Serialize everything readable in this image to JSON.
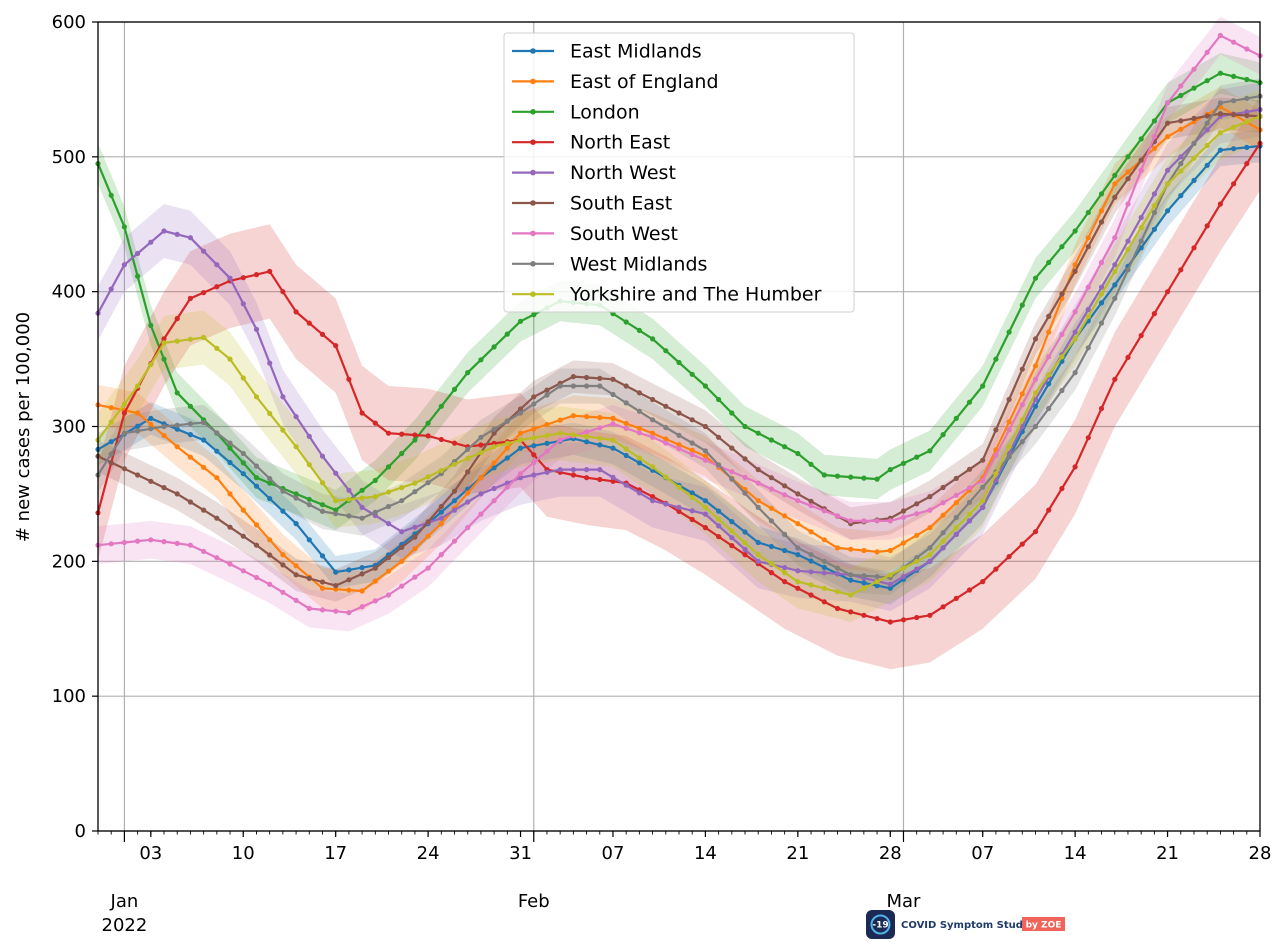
{
  "chart_data": {
    "type": "line",
    "title": "",
    "xlabel": "",
    "ylabel": "# new cases per 100,000",
    "ylim": [
      0,
      600
    ],
    "xlim": [
      "2021-12-30",
      "2022-03-28"
    ],
    "grid": true,
    "legend_position": "top-center",
    "y_ticks": [
      0,
      100,
      200,
      300,
      400,
      500,
      600
    ],
    "x_major_ticks": [
      {
        "date": "2022-01-01",
        "label": "Jan",
        "sublabel": "2022"
      },
      {
        "date": "2022-02-01",
        "label": "Feb",
        "sublabel": ""
      },
      {
        "date": "2022-03-01",
        "label": "Mar",
        "sublabel": ""
      }
    ],
    "x_minor_ticks": [
      {
        "date": "2022-01-03",
        "label": "03"
      },
      {
        "date": "2022-01-10",
        "label": "10"
      },
      {
        "date": "2022-01-17",
        "label": "17"
      },
      {
        "date": "2022-01-24",
        "label": "24"
      },
      {
        "date": "2022-01-31",
        "label": "31"
      },
      {
        "date": "2022-02-07",
        "label": "07"
      },
      {
        "date": "2022-02-14",
        "label": "14"
      },
      {
        "date": "2022-02-21",
        "label": "21"
      },
      {
        "date": "2022-02-28",
        "label": "28"
      },
      {
        "date": "2022-03-07",
        "label": "07"
      },
      {
        "date": "2022-03-14",
        "label": "14"
      },
      {
        "date": "2022-03-21",
        "label": "21"
      },
      {
        "date": "2022-03-28",
        "label": "28"
      }
    ],
    "series": [
      {
        "name": "East Midlands",
        "color": "#1f77b4",
        "band": 12,
        "points": [
          [
            "2021-12-30",
            283
          ],
          [
            "2022-01-03",
            306
          ],
          [
            "2022-01-07",
            290
          ],
          [
            "2022-01-10",
            265
          ],
          [
            "2022-01-14",
            228
          ],
          [
            "2022-01-17",
            192
          ],
          [
            "2022-01-20",
            197
          ],
          [
            "2022-01-24",
            228
          ],
          [
            "2022-01-28",
            262
          ],
          [
            "2022-01-31",
            284
          ],
          [
            "2022-02-04",
            291
          ],
          [
            "2022-02-07",
            284
          ],
          [
            "2022-02-11",
            262
          ],
          [
            "2022-02-14",
            245
          ],
          [
            "2022-02-18",
            214
          ],
          [
            "2022-02-21",
            205
          ],
          [
            "2022-02-25",
            186
          ],
          [
            "2022-02-28",
            180
          ],
          [
            "2022-03-03",
            200
          ],
          [
            "2022-03-07",
            240
          ],
          [
            "2022-03-11",
            315
          ],
          [
            "2022-03-14",
            365
          ],
          [
            "2022-03-17",
            405
          ],
          [
            "2022-03-21",
            460
          ],
          [
            "2022-03-25",
            505
          ],
          [
            "2022-03-28",
            508
          ]
        ]
      },
      {
        "name": "East of England",
        "color": "#ff7f0e",
        "band": 15,
        "points": [
          [
            "2021-12-30",
            316
          ],
          [
            "2022-01-02",
            310
          ],
          [
            "2022-01-05",
            285
          ],
          [
            "2022-01-08",
            262
          ],
          [
            "2022-01-10",
            238
          ],
          [
            "2022-01-13",
            205
          ],
          [
            "2022-01-16",
            180
          ],
          [
            "2022-01-19",
            178
          ],
          [
            "2022-01-22",
            200
          ],
          [
            "2022-01-25",
            228
          ],
          [
            "2022-01-28",
            262
          ],
          [
            "2022-01-31",
            295
          ],
          [
            "2022-02-04",
            308
          ],
          [
            "2022-02-07",
            306
          ],
          [
            "2022-02-10",
            295
          ],
          [
            "2022-02-14",
            278
          ],
          [
            "2022-02-18",
            245
          ],
          [
            "2022-02-21",
            228
          ],
          [
            "2022-02-24",
            210
          ],
          [
            "2022-02-27",
            207
          ],
          [
            "2022-02-28",
            208
          ],
          [
            "2022-03-03",
            225
          ],
          [
            "2022-03-07",
            262
          ],
          [
            "2022-03-11",
            345
          ],
          [
            "2022-03-14",
            420
          ],
          [
            "2022-03-17",
            480
          ],
          [
            "2022-03-21",
            515
          ],
          [
            "2022-03-25",
            537
          ],
          [
            "2022-03-28",
            520
          ]
        ]
      },
      {
        "name": "London",
        "color": "#2ca02c",
        "band": 15,
        "points": [
          [
            "2021-12-30",
            495
          ],
          [
            "2022-01-01",
            448
          ],
          [
            "2022-01-03",
            375
          ],
          [
            "2022-01-05",
            325
          ],
          [
            "2022-01-08",
            295
          ],
          [
            "2022-01-11",
            262
          ],
          [
            "2022-01-14",
            250
          ],
          [
            "2022-01-17",
            238
          ],
          [
            "2022-01-20",
            260
          ],
          [
            "2022-01-23",
            290
          ],
          [
            "2022-01-27",
            340
          ],
          [
            "2022-01-31",
            378
          ],
          [
            "2022-02-03",
            393
          ],
          [
            "2022-02-06",
            390
          ],
          [
            "2022-02-10",
            365
          ],
          [
            "2022-02-14",
            330
          ],
          [
            "2022-02-17",
            300
          ],
          [
            "2022-02-21",
            280
          ],
          [
            "2022-02-23",
            264
          ],
          [
            "2022-02-27",
            261
          ],
          [
            "2022-02-28",
            268
          ],
          [
            "2022-03-03",
            282
          ],
          [
            "2022-03-07",
            330
          ],
          [
            "2022-03-11",
            410
          ],
          [
            "2022-03-14",
            445
          ],
          [
            "2022-03-18",
            500
          ],
          [
            "2022-03-21",
            540
          ],
          [
            "2022-03-25",
            562
          ],
          [
            "2022-03-28",
            555
          ]
        ]
      },
      {
        "name": "North East",
        "color": "#d62728",
        "band": 35,
        "points": [
          [
            "2021-12-30",
            236
          ],
          [
            "2022-01-01",
            310
          ],
          [
            "2022-01-04",
            365
          ],
          [
            "2022-01-06",
            395
          ],
          [
            "2022-01-09",
            408
          ],
          [
            "2022-01-12",
            415
          ],
          [
            "2022-01-14",
            385
          ],
          [
            "2022-01-17",
            360
          ],
          [
            "2022-01-19",
            310
          ],
          [
            "2022-01-21",
            295
          ],
          [
            "2022-01-24",
            293
          ],
          [
            "2022-01-27",
            285
          ],
          [
            "2022-01-31",
            290
          ],
          [
            "2022-02-02",
            268
          ],
          [
            "2022-02-05",
            262
          ],
          [
            "2022-02-08",
            258
          ],
          [
            "2022-02-11",
            243
          ],
          [
            "2022-02-14",
            225
          ],
          [
            "2022-02-17",
            205
          ],
          [
            "2022-02-20",
            185
          ],
          [
            "2022-02-24",
            165
          ],
          [
            "2022-02-28",
            155
          ],
          [
            "2022-03-03",
            160
          ],
          [
            "2022-03-07",
            185
          ],
          [
            "2022-03-11",
            222
          ],
          [
            "2022-03-14",
            270
          ],
          [
            "2022-03-17",
            335
          ],
          [
            "2022-03-21",
            400
          ],
          [
            "2022-03-25",
            465
          ],
          [
            "2022-03-28",
            510
          ]
        ]
      },
      {
        "name": "North West",
        "color": "#9467bd",
        "band": 20,
        "points": [
          [
            "2021-12-30",
            384
          ],
          [
            "2022-01-01",
            420
          ],
          [
            "2022-01-04",
            445
          ],
          [
            "2022-01-06",
            440
          ],
          [
            "2022-01-09",
            410
          ],
          [
            "2022-01-11",
            372
          ],
          [
            "2022-01-13",
            322
          ],
          [
            "2022-01-16",
            278
          ],
          [
            "2022-01-19",
            240
          ],
          [
            "2022-01-22",
            222
          ],
          [
            "2022-01-25",
            232
          ],
          [
            "2022-01-28",
            250
          ],
          [
            "2022-01-31",
            262
          ],
          [
            "2022-02-03",
            268
          ],
          [
            "2022-02-06",
            268
          ],
          [
            "2022-02-10",
            245
          ],
          [
            "2022-02-14",
            235
          ],
          [
            "2022-02-18",
            200
          ],
          [
            "2022-02-21",
            193
          ],
          [
            "2022-02-25",
            190
          ],
          [
            "2022-02-28",
            183
          ],
          [
            "2022-03-03",
            200
          ],
          [
            "2022-03-07",
            240
          ],
          [
            "2022-03-11",
            320
          ],
          [
            "2022-03-14",
            370
          ],
          [
            "2022-03-17",
            420
          ],
          [
            "2022-03-21",
            490
          ],
          [
            "2022-03-25",
            530
          ],
          [
            "2022-03-28",
            535
          ]
        ]
      },
      {
        "name": "South East",
        "color": "#8c564b",
        "band": 12,
        "points": [
          [
            "2021-12-30",
            278
          ],
          [
            "2022-01-02",
            264
          ],
          [
            "2022-01-05",
            250
          ],
          [
            "2022-01-08",
            232
          ],
          [
            "2022-01-11",
            212
          ],
          [
            "2022-01-14",
            190
          ],
          [
            "2022-01-17",
            182
          ],
          [
            "2022-01-20",
            195
          ],
          [
            "2022-01-23",
            218
          ],
          [
            "2022-01-26",
            252
          ],
          [
            "2022-01-29",
            295
          ],
          [
            "2022-02-01",
            322
          ],
          [
            "2022-02-04",
            337
          ],
          [
            "2022-02-07",
            335
          ],
          [
            "2022-02-10",
            320
          ],
          [
            "2022-02-14",
            300
          ],
          [
            "2022-02-18",
            268
          ],
          [
            "2022-02-21",
            250
          ],
          [
            "2022-02-25",
            228
          ],
          [
            "2022-02-28",
            232
          ],
          [
            "2022-03-03",
            248
          ],
          [
            "2022-03-07",
            275
          ],
          [
            "2022-03-11",
            365
          ],
          [
            "2022-03-14",
            415
          ],
          [
            "2022-03-17",
            470
          ],
          [
            "2022-03-21",
            525
          ],
          [
            "2022-03-25",
            532
          ],
          [
            "2022-03-28",
            530
          ]
        ]
      },
      {
        "name": "South West",
        "color": "#e377c2",
        "band": 14,
        "points": [
          [
            "2021-12-30",
            212
          ],
          [
            "2022-01-03",
            216
          ],
          [
            "2022-01-06",
            212
          ],
          [
            "2022-01-09",
            198
          ],
          [
            "2022-01-12",
            183
          ],
          [
            "2022-01-15",
            165
          ],
          [
            "2022-01-18",
            162
          ],
          [
            "2022-01-21",
            175
          ],
          [
            "2022-01-24",
            195
          ],
          [
            "2022-01-27",
            225
          ],
          [
            "2022-01-31",
            265
          ],
          [
            "2022-02-03",
            290
          ],
          [
            "2022-02-07",
            302
          ],
          [
            "2022-02-10",
            292
          ],
          [
            "2022-02-14",
            275
          ],
          [
            "2022-02-18",
            258
          ],
          [
            "2022-02-21",
            245
          ],
          [
            "2022-02-25",
            230
          ],
          [
            "2022-02-28",
            230
          ],
          [
            "2022-03-03",
            238
          ],
          [
            "2022-03-07",
            260
          ],
          [
            "2022-03-11",
            335
          ],
          [
            "2022-03-14",
            385
          ],
          [
            "2022-03-17",
            440
          ],
          [
            "2022-03-21",
            540
          ],
          [
            "2022-03-25",
            590
          ],
          [
            "2022-03-28",
            575
          ]
        ]
      },
      {
        "name": "West Midlands",
        "color": "#7f7f7f",
        "band": 13,
        "points": [
          [
            "2021-12-30",
            264
          ],
          [
            "2022-01-01",
            295
          ],
          [
            "2022-01-04",
            300
          ],
          [
            "2022-01-07",
            303
          ],
          [
            "2022-01-10",
            280
          ],
          [
            "2022-01-13",
            252
          ],
          [
            "2022-01-16",
            237
          ],
          [
            "2022-01-19",
            232
          ],
          [
            "2022-01-22",
            245
          ],
          [
            "2022-01-25",
            265
          ],
          [
            "2022-01-28",
            292
          ],
          [
            "2022-01-31",
            310
          ],
          [
            "2022-02-03",
            330
          ],
          [
            "2022-02-06",
            330
          ],
          [
            "2022-02-10",
            305
          ],
          [
            "2022-02-14",
            282
          ],
          [
            "2022-02-18",
            240
          ],
          [
            "2022-02-21",
            210
          ],
          [
            "2022-02-25",
            190
          ],
          [
            "2022-02-28",
            188
          ],
          [
            "2022-03-03",
            210
          ],
          [
            "2022-03-07",
            255
          ],
          [
            "2022-03-11",
            300
          ],
          [
            "2022-03-14",
            340
          ],
          [
            "2022-03-17",
            395
          ],
          [
            "2022-03-21",
            480
          ],
          [
            "2022-03-25",
            540
          ],
          [
            "2022-03-28",
            545
          ]
        ]
      },
      {
        "name": "Yorkshire and The Humber",
        "color": "#bcbd22",
        "band": 20,
        "points": [
          [
            "2021-12-30",
            290
          ],
          [
            "2022-01-02",
            330
          ],
          [
            "2022-01-04",
            362
          ],
          [
            "2022-01-07",
            366
          ],
          [
            "2022-01-09",
            350
          ],
          [
            "2022-01-11",
            322
          ],
          [
            "2022-01-14",
            285
          ],
          [
            "2022-01-17",
            245
          ],
          [
            "2022-01-20",
            248
          ],
          [
            "2022-01-23",
            258
          ],
          [
            "2022-01-26",
            272
          ],
          [
            "2022-01-29",
            285
          ],
          [
            "2022-01-31",
            290
          ],
          [
            "2022-02-03",
            295
          ],
          [
            "2022-02-07",
            290
          ],
          [
            "2022-02-10",
            270
          ],
          [
            "2022-02-14",
            240
          ],
          [
            "2022-02-18",
            205
          ],
          [
            "2022-02-21",
            185
          ],
          [
            "2022-02-25",
            175
          ],
          [
            "2022-02-28",
            190
          ],
          [
            "2022-03-03",
            205
          ],
          [
            "2022-03-07",
            245
          ],
          [
            "2022-03-11",
            325
          ],
          [
            "2022-03-14",
            365
          ],
          [
            "2022-03-17",
            415
          ],
          [
            "2022-03-21",
            480
          ],
          [
            "2022-03-25",
            518
          ],
          [
            "2022-03-28",
            530
          ]
        ]
      }
    ]
  },
  "logo": {
    "icon_text": "-19",
    "name": "COVID Symptom Study",
    "badge": "by ZOE"
  }
}
